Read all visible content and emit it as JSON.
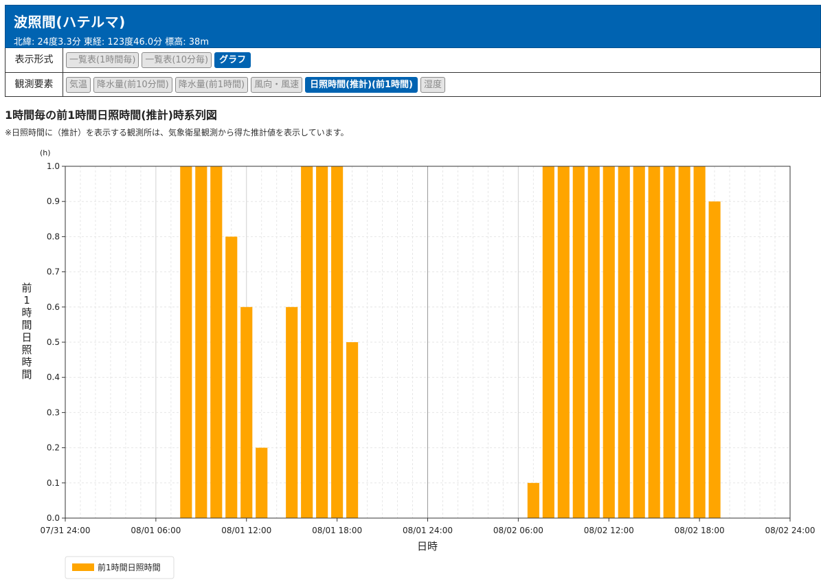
{
  "station": {
    "name": "波照間(ハテルマ)",
    "coords": "北緯: 24度3.3分 東経: 123度46.0分 標高: 38m"
  },
  "display_format": {
    "label": "表示形式",
    "buttons": [
      {
        "label": "一覧表(1時間毎)",
        "active": false
      },
      {
        "label": "一覧表(10分毎)",
        "active": false
      },
      {
        "label": "グラフ",
        "active": true
      }
    ]
  },
  "elements": {
    "label": "観測要素",
    "buttons": [
      {
        "label": "気温",
        "active": false
      },
      {
        "label": "降水量(前10分間)",
        "active": false
      },
      {
        "label": "降水量(前1時間)",
        "active": false
      },
      {
        "label": "風向・風速",
        "active": false
      },
      {
        "label": "日照時間(推計)(前1時間)",
        "active": true
      },
      {
        "label": "湿度",
        "active": false
      }
    ]
  },
  "graph": {
    "title": "1時間毎の前1時間日照時間(推計)時系列図",
    "note": "※日照時間に（推計）を表示する観測所は、気象衛星観測から得た推計値を表示しています。"
  },
  "colors": {
    "bar": "#ffa500",
    "header": "#0063b1"
  },
  "chart_data": {
    "type": "bar",
    "title": "",
    "xlabel": "日時",
    "ylabel": "前1時間日照時間",
    "yunit": "(h)",
    "ylim": [
      0,
      1.0
    ],
    "yticks": [
      "0.0",
      "0.1",
      "0.2",
      "0.3",
      "0.4",
      "0.5",
      "0.6",
      "0.7",
      "0.8",
      "0.9",
      "1.0"
    ],
    "xlim_hours": [
      0,
      48
    ],
    "xticks": [
      "07/31 24:00",
      "08/01 06:00",
      "08/01 12:00",
      "08/01 18:00",
      "08/01 24:00",
      "08/02 06:00",
      "08/02 12:00",
      "08/02 18:00",
      "08/02 24:00"
    ],
    "grid": true,
    "legend_position": "bottom-left",
    "series": [
      {
        "name": "前1時間日照時間",
        "x": [
          "08/01 08:00",
          "08/01 09:00",
          "08/01 10:00",
          "08/01 11:00",
          "08/01 12:00",
          "08/01 13:00",
          "08/01 15:00",
          "08/01 16:00",
          "08/01 17:00",
          "08/01 18:00",
          "08/01 19:00",
          "08/02 07:00",
          "08/02 08:00",
          "08/02 09:00",
          "08/02 10:00",
          "08/02 11:00",
          "08/02 12:00",
          "08/02 13:00",
          "08/02 14:00",
          "08/02 15:00",
          "08/02 16:00",
          "08/02 17:00",
          "08/02 18:00",
          "08/02 19:00"
        ],
        "values": [
          1.0,
          1.0,
          1.0,
          0.8,
          0.6,
          0.2,
          0.6,
          1.0,
          1.0,
          1.0,
          0.5,
          0.1,
          1.0,
          1.0,
          1.0,
          1.0,
          1.0,
          1.0,
          1.0,
          1.0,
          1.0,
          1.0,
          1.0,
          0.9
        ]
      }
    ]
  }
}
